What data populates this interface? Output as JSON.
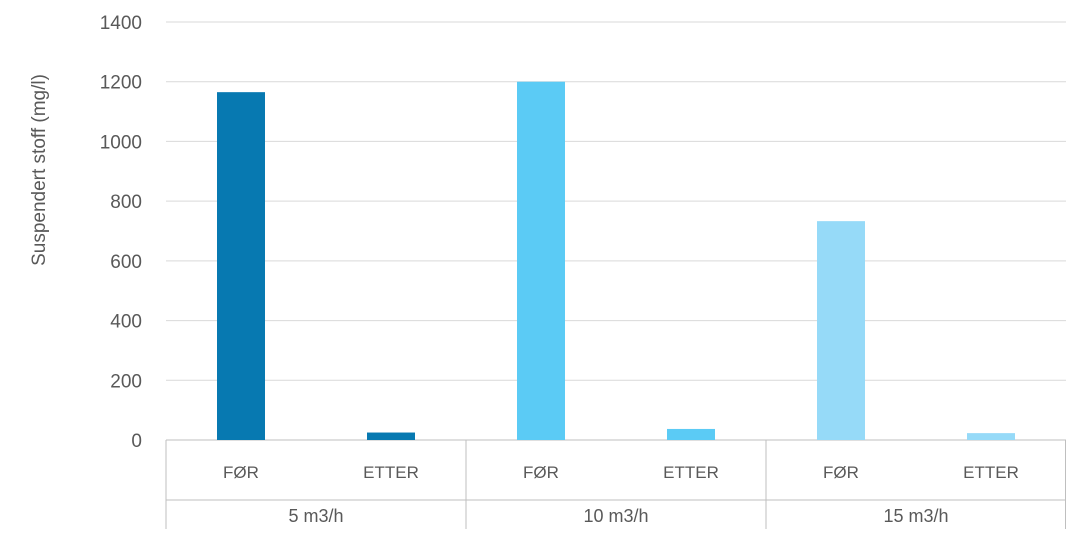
{
  "chart_data": {
    "type": "bar",
    "ylabel": "Suspendert stoff (mg/l)",
    "ylim": [
      0,
      1400
    ],
    "yticks": [
      0,
      200,
      400,
      600,
      800,
      1000,
      1200,
      1400
    ],
    "grid": true,
    "groups": [
      {
        "label": "5 m3/h",
        "color": "#0779B1",
        "bars": [
          {
            "category": "FØR",
            "value": 1165
          },
          {
            "category": "ETTER",
            "value": 25
          }
        ]
      },
      {
        "label": "10 m3/h",
        "color": "#5BCBF5",
        "bars": [
          {
            "category": "FØR",
            "value": 1200
          },
          {
            "category": "ETTER",
            "value": 37
          }
        ]
      },
      {
        "label": "15 m3/h",
        "color": "#96DAF8",
        "bars": [
          {
            "category": "FØR",
            "value": 733
          },
          {
            "category": "ETTER",
            "value": 23
          }
        ]
      }
    ]
  }
}
